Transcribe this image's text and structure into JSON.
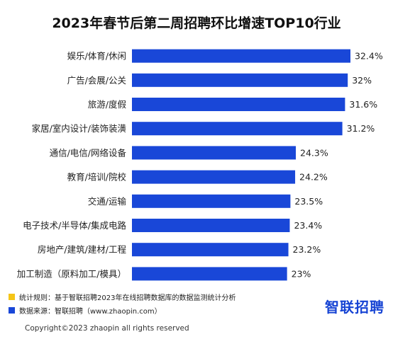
{
  "chart_data": {
    "type": "bar",
    "orientation": "horizontal",
    "title": "2023年春节后第二周招聘环比增速TOP10行业",
    "categories": [
      "娱乐/体育/休闲",
      "广告/会展/公关",
      "旅游/度假",
      "家居/室内设计/装饰装潢",
      "通信/电信/网络设备",
      "教育/培训/院校",
      "交通/运输",
      "电子技术/半导体/集成电路",
      "房地产/建筑/建材/工程",
      "加工制造（原料加工/模具）"
    ],
    "values": [
      32.4,
      32,
      31.6,
      31.2,
      24.3,
      24.2,
      23.5,
      23.4,
      23.2,
      23
    ],
    "value_labels": [
      "32.4%",
      "32%",
      "31.6%",
      "31.2%",
      "24.3%",
      "24.2%",
      "23.5%",
      "23.4%",
      "23.2%",
      "23%"
    ],
    "bar_color": "#1947d8",
    "grid": false
  },
  "footer": {
    "rule_text": "统计规则：基于智联招聘2023年在线招聘数据库的数据监测统计分析",
    "source_text": "数据来源：智联招聘（www.zhaopin.com）",
    "rule_color": "#f5c518",
    "source_color": "#1947d8",
    "logo_text": "智联招聘",
    "copyright": "Copyright©2023 zhaopin all rights reserved"
  }
}
